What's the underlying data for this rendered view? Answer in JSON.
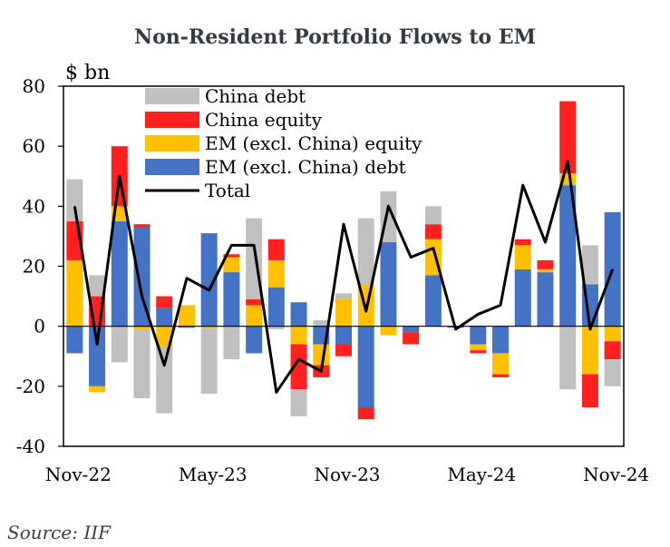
{
  "chart_data": {
    "type": "bar",
    "stacked": true,
    "title": "Non-Resident Portfolio Flows to EM",
    "ylabel": "$ bn",
    "source": "Source: IIF",
    "ylim": [
      -40,
      80
    ],
    "yticks": [
      80,
      60,
      40,
      20,
      0,
      -20,
      -40
    ],
    "x_tick_labels": [
      {
        "index": 0,
        "label": "Nov-22"
      },
      {
        "index": 6,
        "label": "May-23"
      },
      {
        "index": 12,
        "label": "Nov-23"
      },
      {
        "index": 18,
        "label": "May-24"
      },
      {
        "index": 24,
        "label": "Nov-24"
      }
    ],
    "categories": [
      "Nov-22",
      "Dec-22",
      "Jan-23",
      "Feb-23",
      "Mar-23",
      "Apr-23",
      "May-23",
      "Jun-23",
      "Jul-23",
      "Aug-23",
      "Sep-23",
      "Oct-23",
      "Nov-23",
      "Dec-23",
      "Jan-24",
      "Feb-24",
      "Mar-24",
      "Apr-24",
      "May-24",
      "Jun-24",
      "Jul-24",
      "Aug-24",
      "Sep-24",
      "Oct-24",
      "Nov-24"
    ],
    "series": [
      {
        "name": "EM (excl. China) debt",
        "color": "#4472C4",
        "values": [
          -9,
          -20,
          35,
          33,
          6,
          -0.5,
          31,
          18,
          -9,
          13,
          8,
          -6,
          -6,
          -27,
          28,
          -2,
          17,
          -0.5,
          -6,
          -9,
          19,
          18,
          47,
          14,
          38
        ]
      },
      {
        "name": "EM (excl. China) equity",
        "color": "#FFC000",
        "values": [
          22,
          -2,
          5,
          -1,
          -7,
          7,
          -0.5,
          5,
          7,
          9,
          -6,
          -7,
          9,
          14,
          -3,
          0,
          12,
          0,
          -2,
          -7,
          8,
          1,
          4,
          -16,
          -5
        ]
      },
      {
        "name": "China equity",
        "color": "#FF2020",
        "values": [
          13,
          10,
          20,
          1,
          4,
          0,
          0,
          1,
          2,
          7,
          -15,
          -4,
          -4,
          -4,
          0,
          -4,
          5,
          0,
          -1,
          -1,
          2,
          3,
          24,
          -11,
          -6
        ]
      },
      {
        "name": "China debt",
        "color": "#C0C0C0",
        "values": [
          14,
          7,
          -12,
          -23,
          -22,
          0,
          -22,
          -11,
          27,
          -1,
          -9,
          2,
          2,
          22,
          17,
          0,
          6,
          0,
          0,
          0,
          0,
          0,
          -21,
          13,
          -9
        ]
      }
    ],
    "total": {
      "name": "Total",
      "color": "#000000",
      "values": [
        40,
        -6,
        50,
        10,
        -13,
        16,
        12,
        27,
        27,
        -22,
        -11,
        -15,
        34,
        5,
        40,
        23,
        26,
        -1,
        4,
        7,
        47,
        28,
        55,
        -1,
        19
      ]
    },
    "legend": [
      "China debt",
      "China equity",
      "EM (excl. China) equity",
      "EM (excl. China) debt",
      "Total"
    ],
    "legend_position": "top-left"
  }
}
